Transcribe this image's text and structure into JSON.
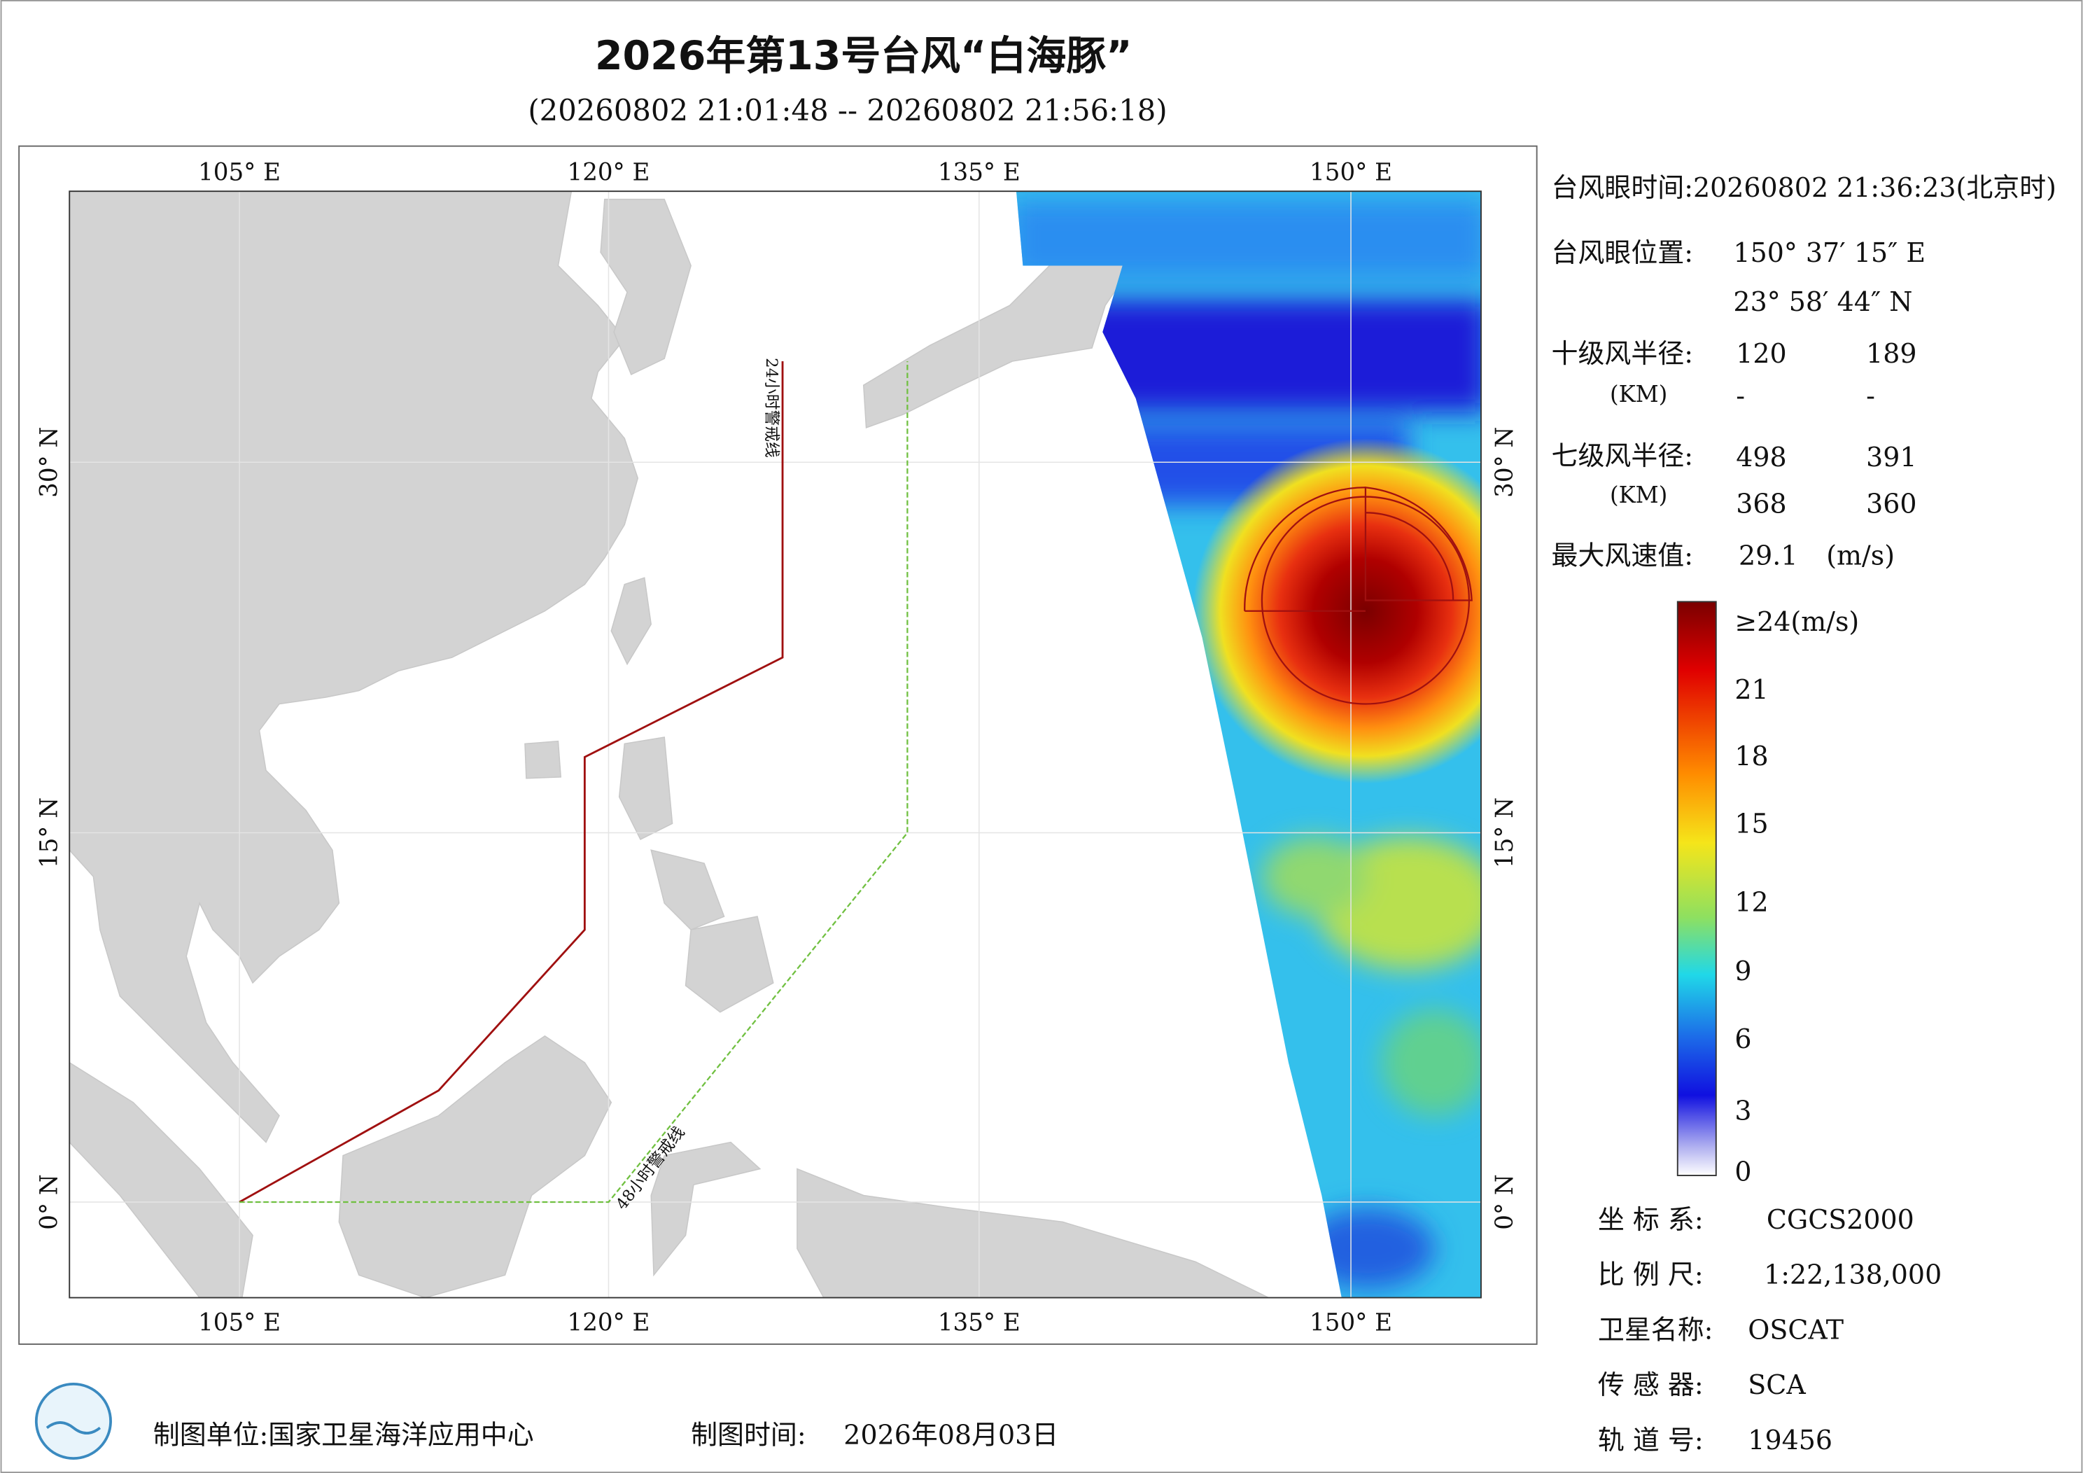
{
  "header": {
    "title": "2026年第13号台风“白海豚”",
    "subtitle": "(20260802 21:01:48 -- 20260802 21:56:18)"
  },
  "map": {
    "top_labels": [
      "105° E",
      "120° E",
      "135° E",
      "150° E"
    ],
    "bottom_labels": [
      "105° E",
      "120° E",
      "135° E",
      "150° E"
    ],
    "left_labels": [
      "30° N",
      "15° N",
      "0° N"
    ],
    "right_labels": [
      "30° N",
      "15° N",
      "0° N"
    ],
    "warning_24h": "24小时警戒线",
    "warning_48h": "48小时警戒线"
  },
  "info": {
    "eye_time": "台风眼时间:20260802 21:36:23(北京时)",
    "eye_position_label": "台风眼位置:",
    "eye_lon": "150° 37′ 15″ E",
    "eye_lat": "23° 58′ 44″ N",
    "r10_label": "十级风半径:",
    "r10_unit": "(KM)",
    "r10_values": [
      "120",
      "189",
      "-",
      "-"
    ],
    "r7_label": "七级风半径:",
    "r7_unit": "(KM)",
    "r7_values": [
      "498",
      "391",
      "368",
      "360"
    ],
    "max_wind_label": "最大风速值:",
    "max_wind_value": "29.1",
    "max_wind_unit": "(m/s)"
  },
  "colorbar": {
    "labels": [
      "≥24(m/s)",
      "21",
      "18",
      "15",
      "12",
      "9",
      "6",
      "3",
      "0"
    ]
  },
  "meta": {
    "rows": [
      [
        "坐 标 系:",
        "CGCS2000"
      ],
      [
        "比 例 尺:",
        "1:22,138,000"
      ],
      [
        "卫星名称:",
        "OSCAT"
      ],
      [
        "传 感 器:",
        "SCA"
      ],
      [
        "轨 道 号:",
        "19456"
      ]
    ]
  },
  "footer": {
    "unit": "制图单位:国家卫星海洋应用中心",
    "time_label": "制图时间:",
    "time": "2026年08月03日"
  }
}
